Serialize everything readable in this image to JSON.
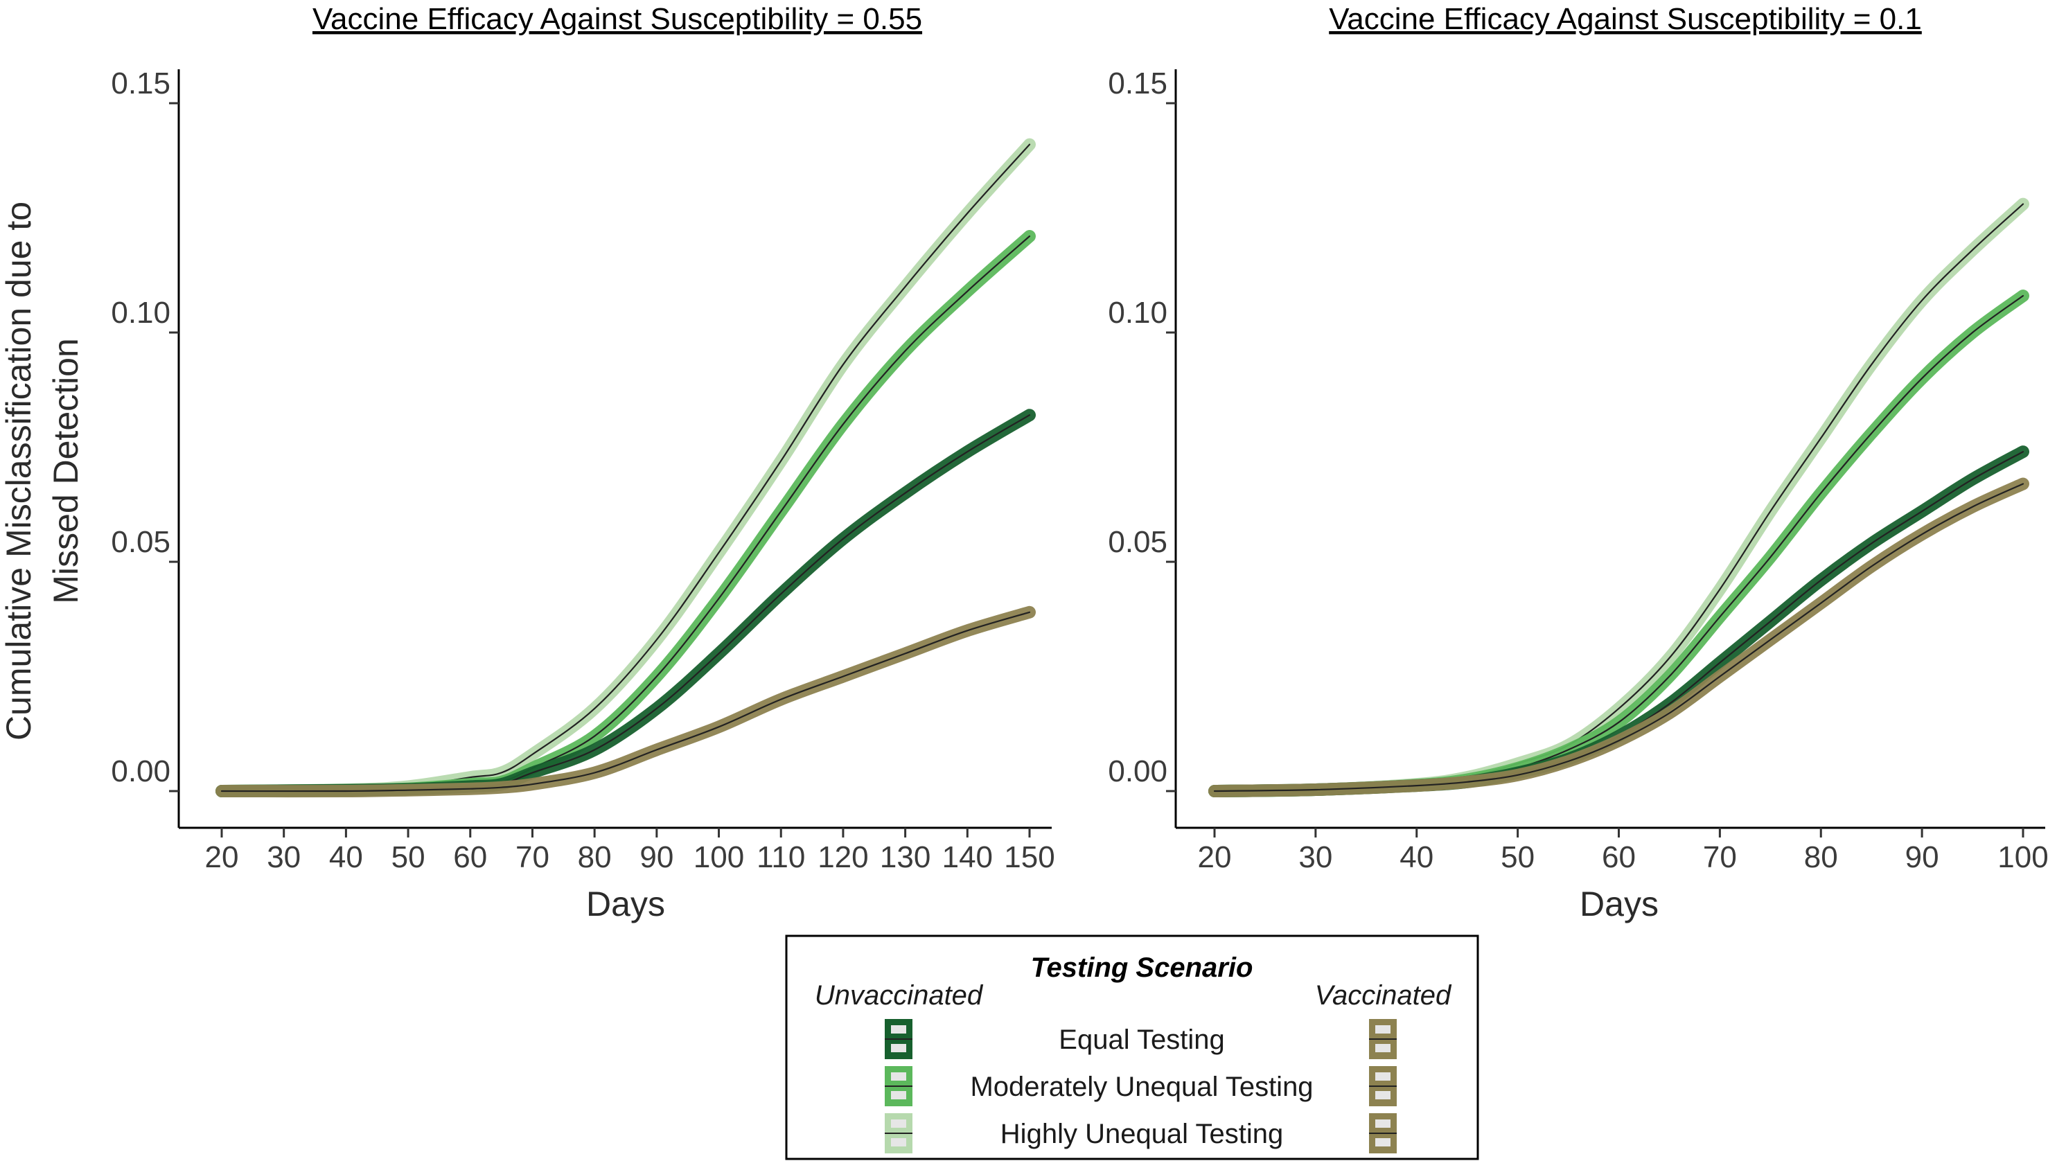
{
  "chart_data": [
    {
      "type": "line",
      "title": "Vaccine Efficacy Against Susceptibility = 0.55",
      "xlabel": "Days",
      "ylabel_lines": [
        "Cumulative Misclassification due to",
        "Missed Detection"
      ],
      "xlim": [
        20,
        150
      ],
      "ylim": [
        0.0,
        0.15
      ],
      "xticks": [
        "20",
        "30",
        "40",
        "50",
        "60",
        "70",
        "80",
        "90",
        "100",
        "110",
        "120",
        "130",
        "140",
        "150"
      ],
      "yticks": [
        "0.00",
        "0.05",
        "0.10",
        "0.15"
      ],
      "series": [
        {
          "name": "Highly Unequal Testing",
          "group": "Unvaccinated",
          "color": "#b6d9ad",
          "x": [
            20,
            40,
            50,
            60,
            65,
            70,
            80,
            90,
            100,
            110,
            120,
            130,
            140,
            150
          ],
          "y": [
            0.0,
            0.0003,
            0.001,
            0.003,
            0.004,
            0.008,
            0.018,
            0.033,
            0.052,
            0.072,
            0.093,
            0.11,
            0.126,
            0.141
          ]
        },
        {
          "name": "Moderately Unequal Testing",
          "group": "Unvaccinated",
          "color": "#5cb85c",
          "x": [
            20,
            40,
            50,
            60,
            65,
            70,
            80,
            90,
            100,
            110,
            120,
            130,
            140,
            150
          ],
          "y": [
            0.0,
            0.0002,
            0.0005,
            0.0015,
            0.002,
            0.005,
            0.012,
            0.025,
            0.042,
            0.061,
            0.08,
            0.096,
            0.109,
            0.121
          ]
        },
        {
          "name": "Equal Testing",
          "group": "Unvaccinated",
          "color": "#17602e",
          "x": [
            20,
            40,
            50,
            60,
            65,
            70,
            80,
            90,
            100,
            110,
            120,
            130,
            140,
            150
          ],
          "y": [
            0.0,
            0.0002,
            0.0004,
            0.001,
            0.0015,
            0.004,
            0.009,
            0.018,
            0.03,
            0.043,
            0.055,
            0.065,
            0.074,
            0.082
          ]
        },
        {
          "name": "Vaccinated",
          "group": "Vaccinated",
          "color": "#8d8250",
          "x": [
            20,
            40,
            50,
            60,
            65,
            70,
            80,
            90,
            100,
            110,
            120,
            130,
            140,
            150
          ],
          "y": [
            0.0,
            0.0,
            0.0002,
            0.0005,
            0.0008,
            0.0015,
            0.004,
            0.009,
            0.014,
            0.02,
            0.025,
            0.03,
            0.035,
            0.039
          ]
        }
      ]
    },
    {
      "type": "line",
      "title": "Vaccine Efficacy Against Susceptibility = 0.1",
      "xlabel": "Days",
      "xlim": [
        20,
        100
      ],
      "ylim": [
        0.0,
        0.15
      ],
      "xticks": [
        "20",
        "30",
        "40",
        "50",
        "60",
        "70",
        "80",
        "90",
        "100"
      ],
      "yticks": [
        "0.00",
        "0.05",
        "0.10",
        "0.15"
      ],
      "series": [
        {
          "name": "Highly Unequal Testing",
          "group": "Unvaccinated",
          "color": "#b6d9ad",
          "x": [
            20,
            30,
            40,
            45,
            50,
            55,
            60,
            65,
            70,
            75,
            80,
            85,
            90,
            95,
            100
          ],
          "y": [
            0.0,
            0.0003,
            0.0015,
            0.003,
            0.006,
            0.01,
            0.018,
            0.029,
            0.044,
            0.061,
            0.077,
            0.093,
            0.107,
            0.118,
            0.128
          ]
        },
        {
          "name": "Moderately Unequal Testing",
          "group": "Unvaccinated",
          "color": "#5cb85c",
          "x": [
            20,
            30,
            40,
            45,
            50,
            55,
            60,
            65,
            70,
            75,
            80,
            85,
            90,
            95,
            100
          ],
          "y": [
            0.0,
            0.0003,
            0.0013,
            0.0025,
            0.005,
            0.009,
            0.015,
            0.025,
            0.038,
            0.051,
            0.065,
            0.078,
            0.09,
            0.1,
            0.108
          ]
        },
        {
          "name": "Equal Testing",
          "group": "Unvaccinated",
          "color": "#17602e",
          "x": [
            20,
            30,
            40,
            45,
            50,
            55,
            60,
            65,
            70,
            75,
            80,
            85,
            90,
            95,
            100
          ],
          "y": [
            0.0,
            0.0003,
            0.0012,
            0.002,
            0.004,
            0.007,
            0.012,
            0.019,
            0.028,
            0.037,
            0.046,
            0.054,
            0.061,
            0.068,
            0.074
          ]
        },
        {
          "name": "Vaccinated",
          "group": "Vaccinated",
          "color": "#8d8250",
          "x": [
            20,
            30,
            40,
            45,
            50,
            55,
            60,
            65,
            70,
            75,
            80,
            85,
            90,
            95,
            100
          ],
          "y": [
            0.0,
            0.0003,
            0.0012,
            0.002,
            0.0035,
            0.0065,
            0.011,
            0.017,
            0.025,
            0.033,
            0.041,
            0.049,
            0.056,
            0.062,
            0.067
          ]
        }
      ]
    }
  ],
  "legend": {
    "title": "Testing Scenario",
    "left_header": "Unvaccinated",
    "right_header": "Vaccinated",
    "items": [
      {
        "label": "Equal Testing",
        "unvax_color": "#17602e",
        "vax_color": "#8d8250"
      },
      {
        "label": "Moderately Unequal Testing",
        "unvax_color": "#5cb85c",
        "vax_color": "#8d8250"
      },
      {
        "label": "Highly Unequal Testing",
        "unvax_color": "#b6d9ad",
        "vax_color": "#8d8250"
      }
    ]
  }
}
